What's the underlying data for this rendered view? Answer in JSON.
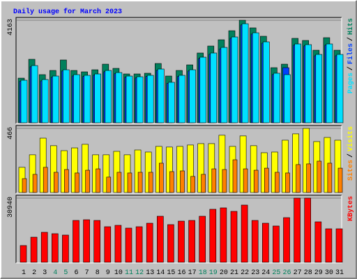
{
  "title": "Daily usage for March 2023",
  "weekend_days": [
    4,
    5,
    11,
    12,
    18,
    19,
    25,
    26
  ],
  "weekend_color": "#00805c",
  "chart_data": [
    {
      "type": "bar",
      "legend_separator": "/",
      "ylim": [
        0,
        4163
      ],
      "yticks": [
        4163
      ],
      "series": [
        {
          "name": "Hits",
          "color": "#00805c",
          "values": [
            1812,
            2577,
            1954,
            2124,
            2549,
            2124,
            2067,
            2152,
            2379,
            2209,
            1982,
            1982,
            2011,
            2407,
            1897,
            2124,
            2350,
            2832,
            3115,
            3370,
            3738,
            4163,
            3852,
            3512,
            2237,
            2379,
            3427,
            3342,
            2945,
            3455,
            2945
          ]
        },
        {
          "name": "Files",
          "color": "#0040ff",
          "values": [
            1680,
            2270,
            1700,
            1850,
            2100,
            1900,
            1880,
            1930,
            2070,
            1990,
            1850,
            1820,
            1880,
            2130,
            1600,
            1880,
            2100,
            2610,
            2780,
            3000,
            3430,
            3970,
            3600,
            3230,
            1960,
            2237,
            3150,
            3120,
            2720,
            3150,
            2720
          ]
        },
        {
          "name": "Pages",
          "color": "#00e0ff",
          "values": [
            1727,
            2322,
            1756,
            1897,
            2152,
            1954,
            1926,
            1982,
            2124,
            2039,
            1897,
            1869,
            1926,
            2181,
            1643,
            1926,
            2152,
            2662,
            2832,
            3059,
            3483,
            4021,
            3653,
            3285,
            2011,
            1954,
            3200,
            3172,
            2775,
            3200,
            2775
          ]
        }
      ]
    },
    {
      "type": "bar",
      "legend_separator": "/",
      "ylim": [
        0,
        466
      ],
      "yticks": [
        466
      ],
      "series": [
        {
          "name": "Visits",
          "color": "#ffff00",
          "values": [
            183,
            274,
            395,
            340,
            304,
            324,
            350,
            274,
            274,
            299,
            274,
            309,
            294,
            335,
            330,
            335,
            345,
            355,
            355,
            416,
            335,
            411,
            340,
            289,
            294,
            380,
            426,
            466,
            370,
            400,
            380
          ]
        },
        {
          "name": "Sites",
          "color": "#ff8000",
          "values": [
            101,
            132,
            183,
            147,
            167,
            142,
            162,
            172,
            112,
            147,
            142,
            147,
            147,
            213,
            152,
            157,
            117,
            132,
            172,
            167,
            238,
            172,
            162,
            177,
            147,
            142,
            203,
            208,
            228,
            213,
            177
          ]
        }
      ]
    },
    {
      "type": "bar",
      "ylim": [
        0,
        30940
      ],
      "yticks": [
        30940
      ],
      "categories": [
        "1",
        "2",
        "3",
        "4",
        "5",
        "6",
        "7",
        "8",
        "9",
        "10",
        "11",
        "12",
        "13",
        "14",
        "15",
        "16",
        "17",
        "18",
        "19",
        "20",
        "21",
        "22",
        "23",
        "24",
        "25",
        "26",
        "27",
        "28",
        "29",
        "30",
        "31"
      ],
      "series": [
        {
          "name": "KBytes",
          "color": "#ff0000",
          "values": [
            8071,
            12107,
            14461,
            13788,
            13116,
            20178,
            20514,
            20178,
            17151,
            17824,
            16479,
            17151,
            18833,
            22196,
            18160,
            19842,
            20178,
            22196,
            25559,
            26231,
            24550,
            27577,
            20178,
            18833,
            17487,
            21523,
            30940,
            30940,
            19506,
            16143,
            16143
          ]
        }
      ]
    }
  ]
}
